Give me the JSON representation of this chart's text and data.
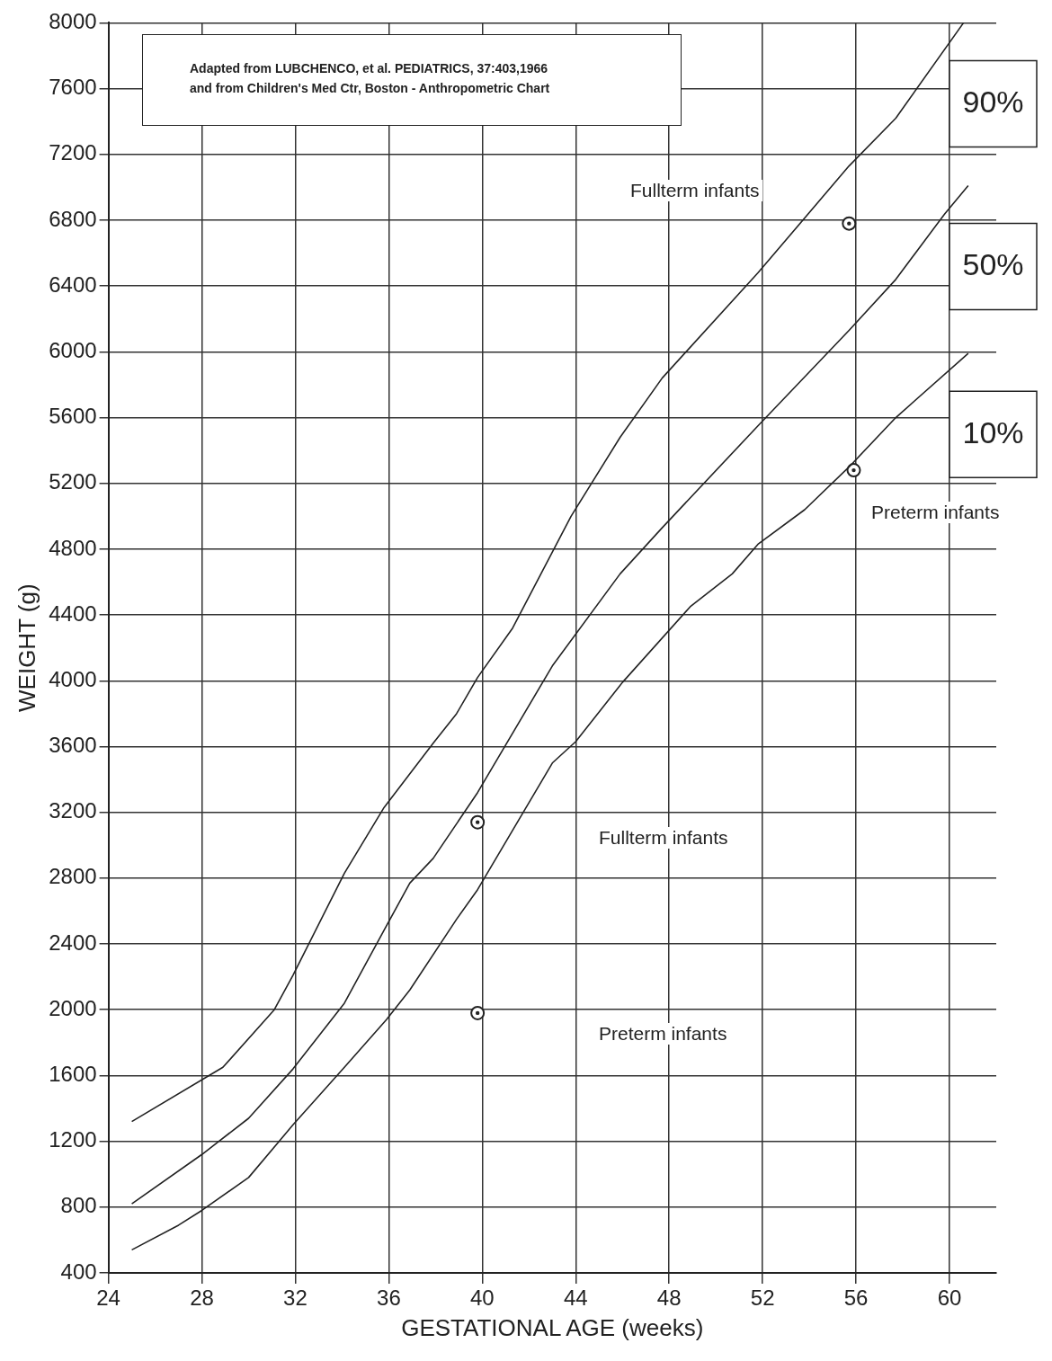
{
  "chart_data": {
    "type": "line",
    "xlabel": "GESTATIONAL AGE (weeks)",
    "ylabel": "WEIGHT (g)",
    "xlim": [
      24,
      62
    ],
    "xticks": [
      24,
      28,
      32,
      36,
      40,
      44,
      48,
      52,
      56,
      60
    ],
    "ylim": [
      400,
      8000
    ],
    "yticks": [
      400,
      800,
      1200,
      1600,
      2000,
      2400,
      2800,
      3200,
      3600,
      4000,
      4400,
      4800,
      5200,
      5600,
      6000,
      6400,
      6800,
      7200,
      7600,
      8000
    ],
    "grid": true,
    "legend": false,
    "series": [
      {
        "name": "90%",
        "color": "#222222",
        "marker": "none",
        "x": [
          25,
          28.9,
          31.1,
          31.9,
          34.1,
          35.8,
          37.9,
          38.9,
          39.8,
          41.3,
          43.8,
          45.9,
          47.7,
          51.8,
          55.7,
          57.7,
          60.6
        ],
        "values": [
          1320,
          1650,
          2000,
          2210,
          2830,
          3230,
          3620,
          3800,
          4020,
          4320,
          5000,
          5480,
          5840,
          6480,
          7130,
          7420,
          8000
        ]
      },
      {
        "name": "50%",
        "color": "#222222",
        "marker": "none",
        "x": [
          25,
          28,
          30,
          31.9,
          34.1,
          35.9,
          36.9,
          37.9,
          39.8,
          43,
          45.9,
          47.7,
          51.8,
          55.7,
          57.7,
          59.8,
          60.8
        ],
        "values": [
          820,
          1120,
          1340,
          1640,
          2040,
          2510,
          2770,
          2920,
          3320,
          4090,
          4650,
          4930,
          5550,
          6130,
          6440,
          6840,
          7010
        ]
      },
      {
        "name": "10%",
        "color": "#222222",
        "marker": "none",
        "x": [
          25,
          27,
          28,
          30,
          31.9,
          34.1,
          35.9,
          36.9,
          38.9,
          39.8,
          43,
          44,
          46,
          48.9,
          50.7,
          51.8,
          53.8,
          55.7,
          57.7,
          60.8
        ],
        "values": [
          540,
          690,
          780,
          980,
          1300,
          1650,
          1940,
          2120,
          2550,
          2730,
          3500,
          3630,
          3990,
          4450,
          4650,
          4830,
          5040,
          5300,
          5600,
          5990
        ]
      },
      {
        "color": "#222222",
        "type": "scatter",
        "marker": "circle",
        "x": [
          39.8,
          39.8,
          55.7,
          55.9
        ],
        "values": [
          3140,
          1980,
          6780,
          5280
        ]
      }
    ],
    "annotations": [
      "Adapted from LUBCHENCO, et al. PEDIATRICS, 37:403,1966",
      "and from Children's Med Ctr, Boston - Anthropometric Chart",
      "Fullterm infants",
      "Fullterm infants",
      "Preterm infants",
      "Preterm infants"
    ]
  }
}
